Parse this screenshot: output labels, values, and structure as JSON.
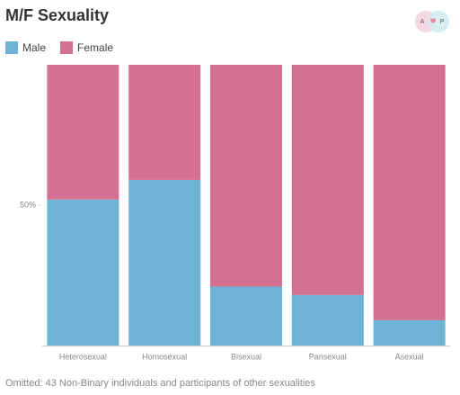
{
  "chart_data": {
    "type": "stacked_bar_100",
    "title": "M/F Sexuality",
    "categories": [
      "Heterosexual",
      "Homosexual",
      "Bisexual",
      "Pansexual",
      "Asexual"
    ],
    "series": [
      {
        "name": "Male",
        "color": "#6cb3d5",
        "values": [
          52,
          59,
          21,
          18,
          9
        ]
      },
      {
        "name": "Female",
        "color": "#d47192",
        "values": [
          48,
          41,
          79,
          82,
          91
        ]
      }
    ],
    "ylim": [
      0,
      100
    ],
    "yticks": [
      {
        "value": 50,
        "label": "50%"
      }
    ],
    "legend": "top-left",
    "note": "Omitted: 43 Non-Binary individuals and participants of other sexualities",
    "logo": {
      "left": "A",
      "right": "P"
    }
  }
}
